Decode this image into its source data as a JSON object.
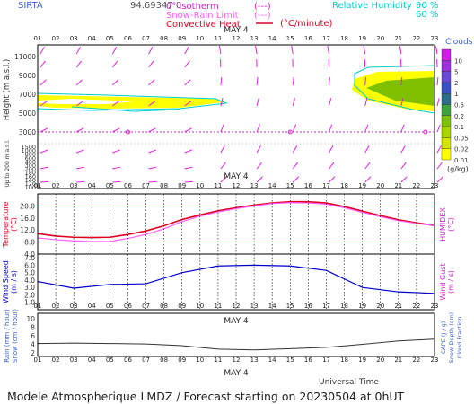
{
  "header": {
    "station": "SIRTA",
    "coords": "94.69347 0",
    "legend_iso": "0° isotherm",
    "legend_snowrain": "Snow-Rain Limit",
    "legend_conv": "Convective Heat",
    "legend_conv_unit": "(°C/minute)",
    "legend_conv_dash": "(---)",
    "legend_rh": "Relative Humidity",
    "rh_90": "90 %",
    "rh_60": "60 %"
  },
  "hours": [
    "01",
    "02",
    "03",
    "04",
    "05",
    "06",
    "07",
    "08",
    "09",
    "10",
    "11",
    "12",
    "13",
    "14",
    "15",
    "16",
    "17",
    "18",
    "19",
    "20",
    "21",
    "22",
    "23"
  ],
  "day_label": "MAY  4",
  "clouds": {
    "title": "Clouds",
    "unit": "(g/kg)",
    "levels": [
      "0.01",
      "0.02",
      "0.05",
      "0.1",
      "0.2",
      "0.5",
      "1",
      "2",
      "5",
      "10"
    ],
    "colors": [
      "#ffff00",
      "#d4e600",
      "#a8d400",
      "#7fc000",
      "#3da23d",
      "#2a6e8a",
      "#3a4fc7",
      "#6a48d8",
      "#9a30e0",
      "#d01ee6"
    ]
  },
  "height_axis": {
    "label": "Height  (m a.s.l.)",
    "label2": "Up to 200 m a.s.l.",
    "upper_ticks": [
      "11000",
      "9000",
      "7000",
      "5000",
      "3000"
    ],
    "lower_ticks": [
      "1500",
      "1000",
      "800",
      "600",
      "400",
      "300",
      "200",
      "180",
      "160",
      "140",
      "120",
      "100"
    ]
  },
  "temp_axis": {
    "label": "Temperature",
    "unit": "(°C)",
    "ticks": [
      "20.0",
      "16.0",
      "12.0",
      "8.0",
      "4.0"
    ],
    "right_label": "HUMIDEX",
    "right_unit": "(°C)"
  },
  "wind_axis": {
    "label": "Wind Speed",
    "unit": "(m / s)",
    "ticks": [
      "7.0",
      "6.0",
      "5.0",
      "4.0",
      "3.0",
      "2.0",
      "1.0"
    ],
    "right_label": "Wind Gust",
    "right_unit": "(m / s)"
  },
  "rain_axis": {
    "label1": "Rain (mm / hour)",
    "label2": "Snow (cm / hour)",
    "ticks": [
      "10",
      "8",
      "6",
      "4",
      "2"
    ],
    "right1": "CAPE (J / g)",
    "right2": "Snow Depth (cm)",
    "right3": "Cloud Fraction"
  },
  "xlabel": "Universal Time",
  "footer": "Modele Atmospherique LMDZ / Forecast starting on 20230504 at 0hUT",
  "chart_data": [
    {
      "type": "area",
      "name": "cloud-height",
      "x_hours": [
        1,
        23
      ],
      "isotherm_0deg_m": 3150,
      "isotherm_markers": [
        6,
        15,
        22.5
      ]
    },
    {
      "type": "line",
      "x": [
        1,
        2,
        3,
        4,
        5,
        6,
        7,
        8,
        9,
        10,
        11,
        12,
        13,
        14,
        15,
        16,
        17,
        18,
        19,
        20,
        21,
        22,
        23
      ],
      "series": [
        {
          "name": "Temperature",
          "color": "#e00020",
          "values": [
            10.8,
            10.0,
            9.6,
            9.5,
            9.6,
            10.5,
            11.7,
            13.4,
            15.5,
            17.0,
            18.4,
            19.4,
            20.3,
            21.0,
            21.4,
            21.4,
            21.0,
            19.8,
            18.3,
            16.8,
            15.4,
            14.4,
            13.5
          ]
        },
        {
          "name": "HUMIDEX",
          "color": "#ff60ff",
          "values": [
            9.4,
            8.8,
            8.4,
            8.2,
            8.2,
            9.2,
            10.5,
            12.4,
            14.8,
            16.6,
            18.0,
            19.1,
            20.0,
            20.8,
            21.1,
            21.0,
            20.6,
            19.4,
            17.9,
            16.4,
            15.1,
            14.2,
            13.4
          ]
        }
      ],
      "ylim": [
        4,
        24
      ]
    },
    {
      "type": "line",
      "x": [
        1,
        3,
        5,
        7,
        9,
        11,
        13,
        15,
        17,
        19,
        21,
        23
      ],
      "series": [
        {
          "name": "Wind Speed",
          "color": "#0000cc",
          "values": [
            3.8,
            2.9,
            3.4,
            3.5,
            5.0,
            5.9,
            6.0,
            5.9,
            5.3,
            3.0,
            2.4,
            2.2
          ]
        }
      ],
      "ylim": [
        0,
        7.5
      ]
    },
    {
      "type": "line",
      "x": [
        1,
        3,
        5,
        7,
        9,
        11,
        13,
        15,
        17,
        19,
        21,
        23
      ],
      "series": [
        {
          "name": "Cloud Fraction",
          "color": "#333333",
          "values": [
            0.3,
            0.31,
            0.3,
            0.29,
            0.25,
            0.17,
            0.15,
            0.18,
            0.21,
            0.28,
            0.36,
            0.4
          ]
        }
      ],
      "ylim": [
        0,
        1
      ]
    }
  ]
}
